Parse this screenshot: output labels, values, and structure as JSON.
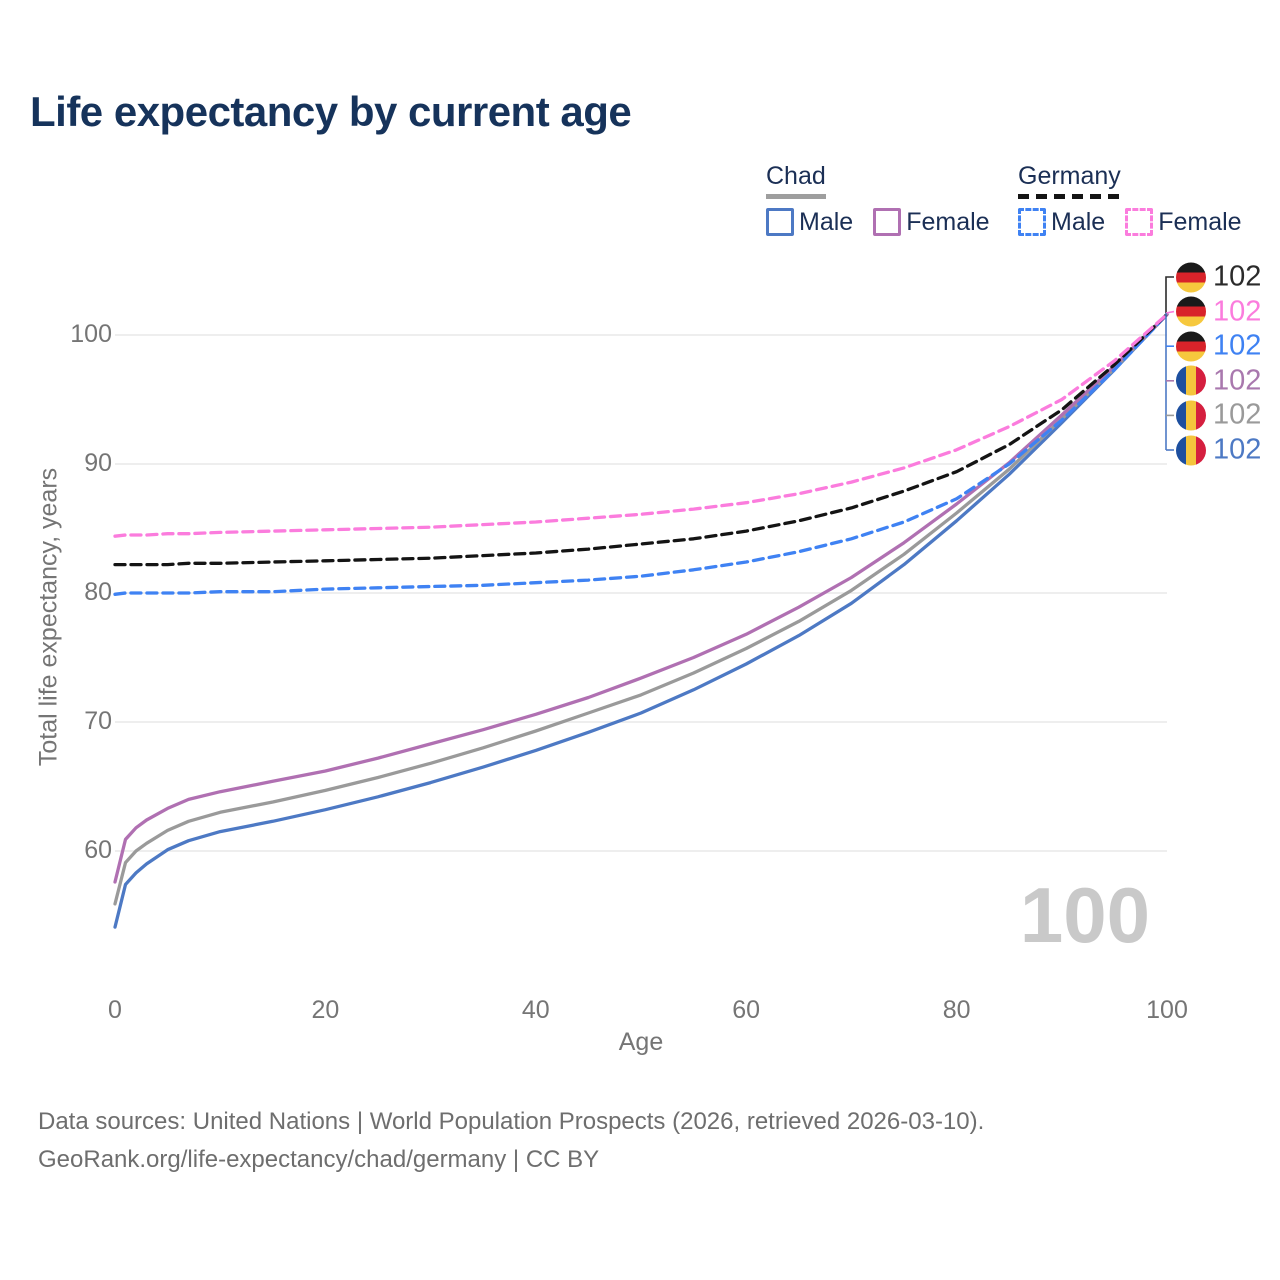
{
  "title": "Life expectancy by current age",
  "legend": {
    "groups": [
      {
        "country": "Chad",
        "line_style": "solid",
        "underline_color": "#9e9e9e",
        "items": [
          {
            "label": "Male",
            "color": "#4d79c4"
          },
          {
            "label": "Female",
            "color": "#b070b2"
          }
        ]
      },
      {
        "country": "Germany",
        "line_style": "dashed",
        "underline_color": "#141414",
        "items": [
          {
            "label": "Male",
            "color": "#3f82f3"
          },
          {
            "label": "Female",
            "color": "#fb7cdd"
          }
        ]
      }
    ]
  },
  "chart_data": {
    "type": "line",
    "title": "Life expectancy by current age",
    "xlabel": "Age",
    "ylabel": "Total life expectancy, years",
    "xlim": [
      0,
      100
    ],
    "ylim": [
      53,
      103
    ],
    "x_ticks": [
      0,
      20,
      40,
      60,
      80,
      100
    ],
    "y_ticks": [
      60,
      70,
      80,
      90,
      100
    ],
    "grid": "horizontal",
    "legend_position": "top-right",
    "x": [
      0,
      1,
      2,
      3,
      5,
      7,
      10,
      15,
      20,
      25,
      30,
      35,
      40,
      45,
      50,
      55,
      60,
      65,
      70,
      75,
      80,
      85,
      90,
      95,
      100
    ],
    "series": [
      {
        "name": "Chad Male",
        "country": "Chad",
        "group": "Male",
        "color": "#4d79c4",
        "dash": false,
        "values": [
          54.1,
          57.4,
          58.3,
          59.0,
          60.1,
          60.8,
          61.5,
          62.3,
          63.2,
          64.2,
          65.3,
          66.5,
          67.8,
          69.2,
          70.7,
          72.5,
          74.5,
          76.7,
          79.2,
          82.2,
          85.6,
          89.2,
          93.2,
          97.3,
          101.6
        ]
      },
      {
        "name": "Chad Both sexes",
        "country": "Chad",
        "group": "Both sexes",
        "color": "#9a9a9a",
        "dash": false,
        "values": [
          55.9,
          59.1,
          60.0,
          60.6,
          61.6,
          62.3,
          63.0,
          63.8,
          64.7,
          65.7,
          66.8,
          68.0,
          69.3,
          70.7,
          72.1,
          73.8,
          75.7,
          77.8,
          80.2,
          83.0,
          86.2,
          89.6,
          93.5,
          97.4,
          101.6
        ]
      },
      {
        "name": "Chad Female",
        "country": "Chad",
        "group": "Female",
        "color": "#b070b2",
        "dash": false,
        "values": [
          57.6,
          60.9,
          61.8,
          62.4,
          63.3,
          64.0,
          64.6,
          65.4,
          66.2,
          67.2,
          68.3,
          69.4,
          70.6,
          71.9,
          73.4,
          75.0,
          76.8,
          78.9,
          81.2,
          83.9,
          86.9,
          90.1,
          93.8,
          97.6,
          101.6
        ]
      },
      {
        "name": "Germany Male",
        "country": "Germany",
        "group": "Male",
        "color": "#3f82f3",
        "dash": true,
        "values": [
          79.9,
          80.0,
          80.0,
          80.0,
          80.0,
          80.0,
          80.1,
          80.1,
          80.3,
          80.4,
          80.5,
          80.6,
          80.8,
          81.0,
          81.3,
          81.8,
          82.4,
          83.2,
          84.2,
          85.5,
          87.3,
          90.0,
          93.4,
          97.3,
          101.6
        ]
      },
      {
        "name": "Germany Both sexes",
        "country": "Germany",
        "group": "Both sexes",
        "color": "#141414",
        "dash": true,
        "values": [
          82.2,
          82.2,
          82.2,
          82.2,
          82.2,
          82.3,
          82.3,
          82.4,
          82.5,
          82.6,
          82.7,
          82.9,
          83.1,
          83.4,
          83.8,
          84.2,
          84.8,
          85.6,
          86.6,
          87.9,
          89.4,
          91.5,
          94.2,
          97.7,
          101.6
        ]
      },
      {
        "name": "Germany Female",
        "country": "Germany",
        "group": "Female",
        "color": "#fb7cdd",
        "dash": true,
        "values": [
          84.4,
          84.5,
          84.5,
          84.5,
          84.6,
          84.6,
          84.7,
          84.8,
          84.9,
          85.0,
          85.1,
          85.3,
          85.5,
          85.8,
          86.1,
          86.5,
          87.0,
          87.7,
          88.6,
          89.7,
          91.1,
          92.9,
          95.0,
          98.0,
          101.6
        ]
      }
    ],
    "end_labels": [
      {
        "flag": "germany",
        "series": "Germany Both sexes",
        "text": "102",
        "color": "#2b2b2b"
      },
      {
        "flag": "germany",
        "series": "Germany Female",
        "text": "102",
        "color": "#fb7cdd"
      },
      {
        "flag": "germany",
        "series": "Germany Male",
        "text": "102",
        "color": "#3f82f3"
      },
      {
        "flag": "chad",
        "series": "Chad Female",
        "text": "102",
        "color": "#a978ae"
      },
      {
        "flag": "chad",
        "series": "Chad Both sexes",
        "text": "102",
        "color": "#9a9a9a"
      },
      {
        "flag": "chad",
        "series": "Chad Male",
        "text": "102",
        "color": "#4d79c4"
      }
    ],
    "current_age_indicator": "100",
    "flag_colors": {
      "germany": [
        "#1a1a1a",
        "#d8232a",
        "#f6c83d"
      ],
      "chad": [
        "#1d4f9f",
        "#f4c53d",
        "#d51f3f"
      ]
    }
  },
  "footer": {
    "line1": "Data sources: United Nations | World Population Prospects (2026, retrieved 2026-03-10).",
    "line2": "GeoRank.org/life-expectancy/chad/germany | CC BY"
  }
}
